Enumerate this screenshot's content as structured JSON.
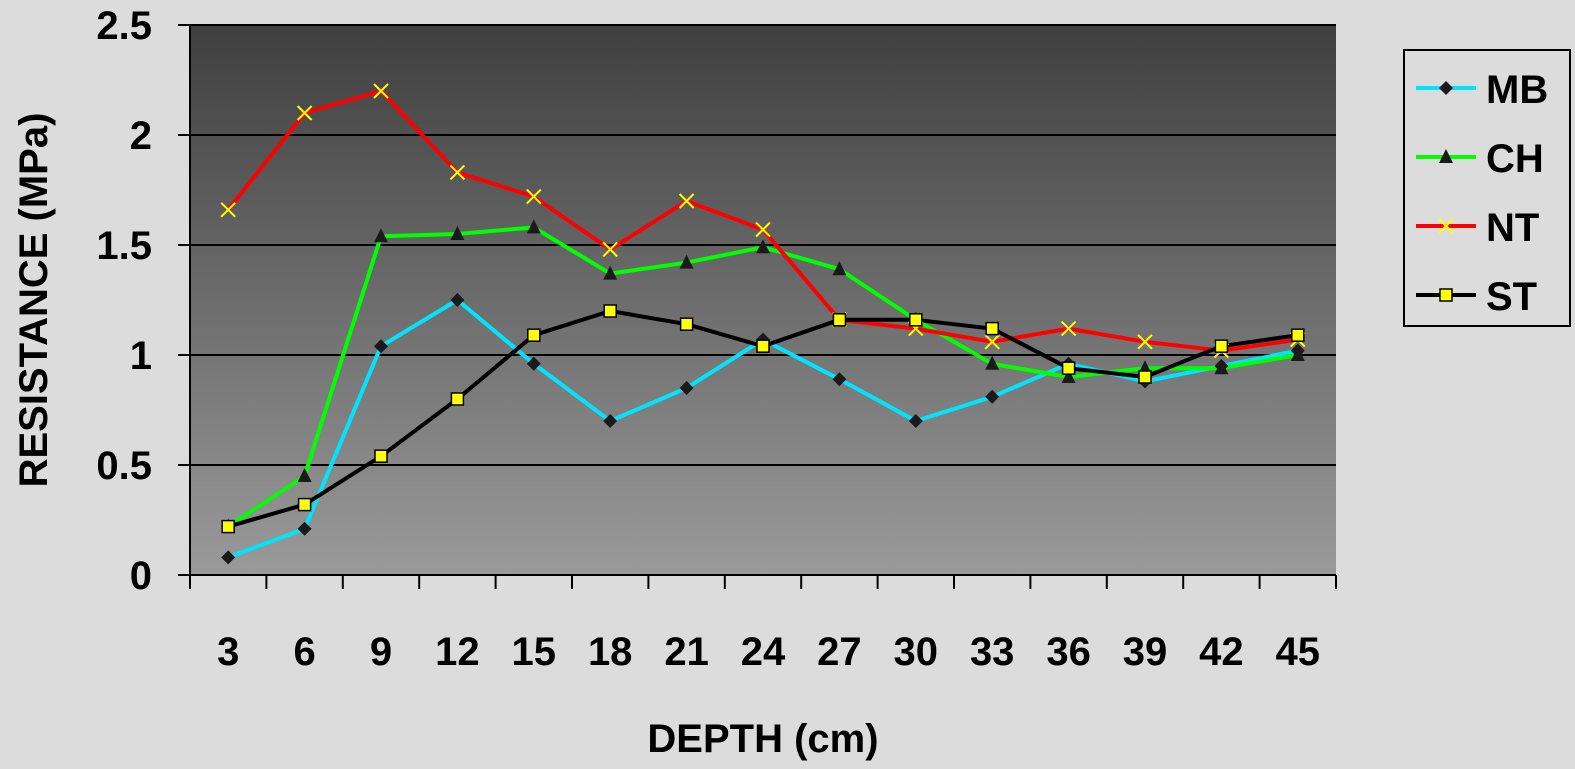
{
  "chart_data": {
    "type": "line",
    "title": "",
    "xlabel": "DEPTH (cm)",
    "ylabel": "RESISTANCE (MPa)",
    "categories": [
      "3",
      "6",
      "9",
      "12",
      "15",
      "18",
      "21",
      "24",
      "27",
      "30",
      "33",
      "36",
      "39",
      "42",
      "45"
    ],
    "ylim": [
      0,
      2.5
    ],
    "yticks": [
      "0",
      "0.5",
      "1",
      "1.5",
      "2",
      "2.5"
    ],
    "grid": true,
    "legend_position": "right",
    "series": [
      {
        "name": "MB",
        "color": "#00e5ff",
        "marker": "diamond",
        "marker_color": "#1a1a1a",
        "values": [
          0.08,
          0.21,
          1.04,
          1.25,
          0.96,
          0.7,
          0.85,
          1.07,
          0.89,
          0.7,
          0.81,
          0.96,
          0.88,
          0.95,
          1.02
        ]
      },
      {
        "name": "CH",
        "color": "#00ff00",
        "marker": "triangle",
        "marker_color": "#1a1a1a",
        "values": [
          0.22,
          0.45,
          1.54,
          1.55,
          1.58,
          1.37,
          1.42,
          1.49,
          1.39,
          1.16,
          0.96,
          0.9,
          0.94,
          0.94,
          1.0
        ]
      },
      {
        "name": "NT",
        "color": "#ff0000",
        "marker": "x",
        "marker_color": "#ffff00",
        "values": [
          1.66,
          2.1,
          2.2,
          1.83,
          1.72,
          1.48,
          1.7,
          1.57,
          1.16,
          1.12,
          1.06,
          1.12,
          1.06,
          1.02,
          1.07
        ]
      },
      {
        "name": "ST",
        "color": "#000000",
        "marker": "square",
        "marker_color": "#ffff00",
        "values": [
          0.22,
          0.32,
          0.54,
          0.8,
          1.09,
          1.2,
          1.14,
          1.04,
          1.16,
          1.16,
          1.12,
          0.94,
          0.9,
          1.04,
          1.09
        ]
      }
    ]
  }
}
